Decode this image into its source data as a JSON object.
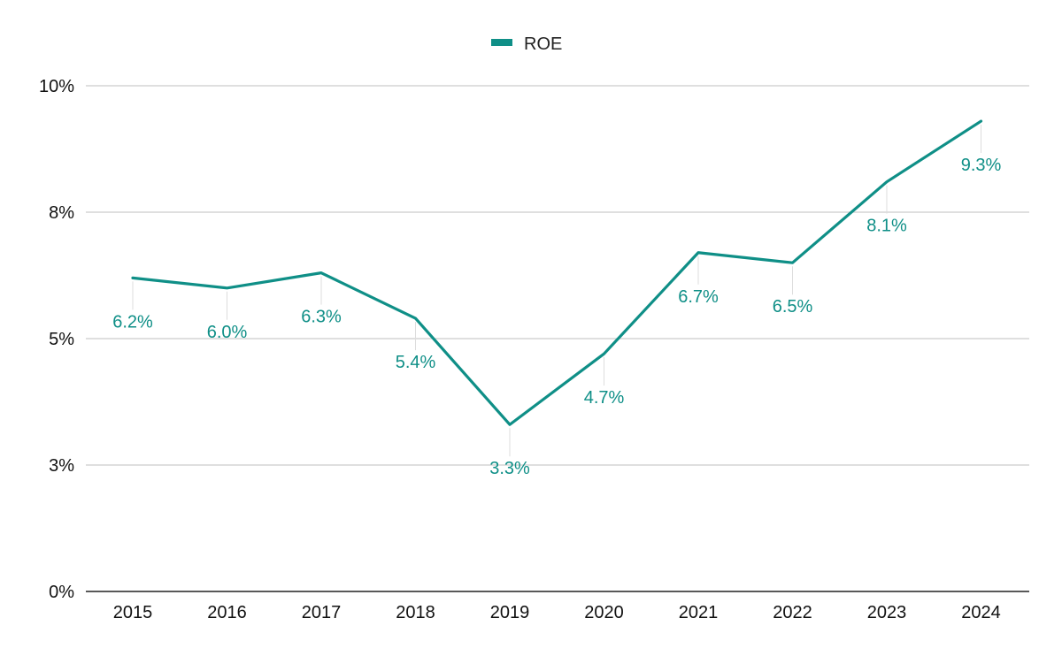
{
  "chart_data": {
    "type": "line",
    "title": "",
    "xlabel": "",
    "ylabel": "",
    "categories": [
      "2015",
      "2016",
      "2017",
      "2018",
      "2019",
      "2020",
      "2021",
      "2022",
      "2023",
      "2024"
    ],
    "series": [
      {
        "name": "ROE",
        "color": "#0f8f87",
        "values": [
          6.2,
          6.0,
          6.3,
          5.4,
          3.3,
          4.7,
          6.7,
          6.5,
          8.1,
          9.3
        ],
        "labels": [
          "6.2%",
          "6.0%",
          "6.3%",
          "5.4%",
          "3.3%",
          "4.7%",
          "6.7%",
          "6.5%",
          "8.1%",
          "9.3%"
        ]
      }
    ],
    "yticks": [
      0,
      2.5,
      5,
      7.5,
      10
    ],
    "ytick_labels": [
      "0%",
      "3%",
      "5%",
      "8%",
      "10%"
    ],
    "ylim": [
      0,
      10
    ],
    "grid": true,
    "legend": "top-center"
  },
  "colors": {
    "series": "#0f8f87",
    "grid": "#cccccc",
    "axis": "#222222",
    "leader": "#dddddd"
  }
}
